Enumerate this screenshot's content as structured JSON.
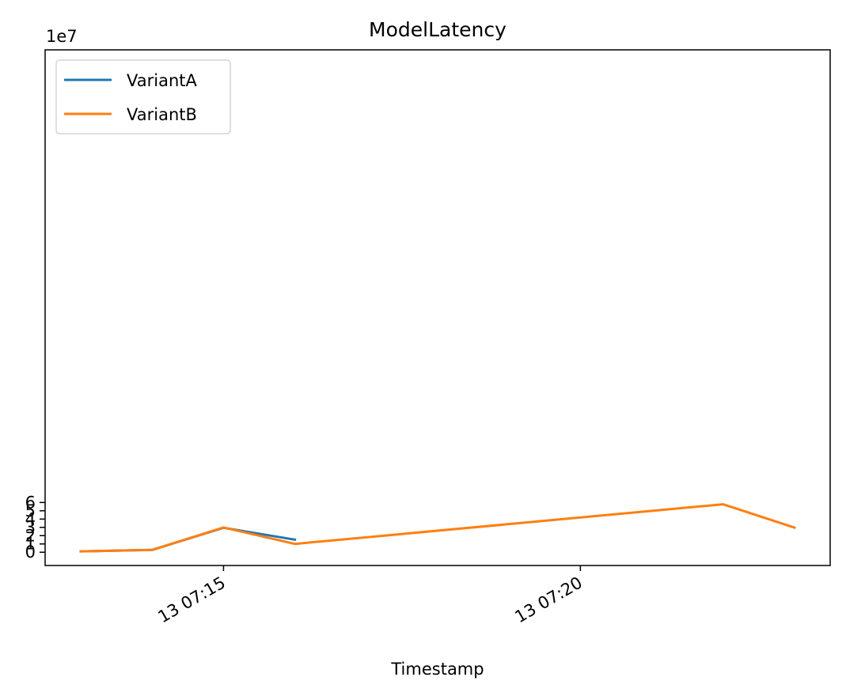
{
  "chart_data": {
    "type": "line",
    "title": "ModelLatency",
    "xlabel": "Timestamp",
    "ylabel": "",
    "y_offset_label": "1e7",
    "y_scale": 10000000,
    "x_unit": "timestamp (day 13)",
    "x": [
      "13 07:13",
      "13 07:14",
      "13 07:15",
      "13 07:16",
      "13 07:17",
      "13 07:18",
      "13 07:19",
      "13 07:20",
      "13 07:21",
      "13 07:22",
      "13 07:23"
    ],
    "xlim": [
      "13 07:12:30",
      "13 07:23:30"
    ],
    "x_ticks": [
      {
        "value": "13 07:15",
        "label": "13 07:15"
      },
      {
        "value": "13 07:20",
        "label": "13 07:20"
      }
    ],
    "ylim": [
      -1.6,
      60.6
    ],
    "y_ticks": [
      0,
      1,
      2,
      3,
      4,
      5,
      6
    ],
    "series": [
      {
        "name": "VariantA",
        "color": "#1f77b4",
        "values": [
          1.1,
          2.8,
          29.5,
          15.2,
          null,
          null,
          null,
          null,
          null,
          null,
          null
        ]
      },
      {
        "name": "VariantB",
        "color": "#ff7f0e",
        "values": [
          1.1,
          2.8,
          29.9,
          10.0,
          null,
          null,
          null,
          null,
          null,
          57.8,
          29.7
        ]
      }
    ],
    "series_note_units": "values in units of 1e6; actual = value x 1e6 (axis shows 1e7 multiplier)",
    "grid": false,
    "legend_position": "upper-left"
  }
}
